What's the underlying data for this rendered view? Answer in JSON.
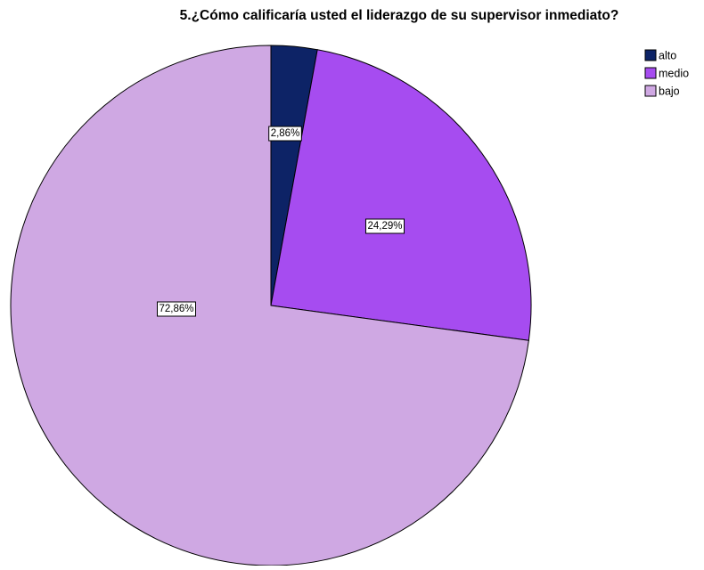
{
  "chart_data": {
    "type": "pie",
    "title": "5.¿Cómo calificaría usted el liderazgo de su supervisor inmediato?",
    "categories": [
      "alto",
      "medio",
      "bajo"
    ],
    "values": [
      2.86,
      24.29,
      72.86
    ],
    "value_labels": [
      "2,86%",
      "24,29%",
      "72,86%"
    ],
    "colors": [
      "#0d2366",
      "#a64cf0",
      "#cfa8e3"
    ],
    "legend": "top-right"
  }
}
